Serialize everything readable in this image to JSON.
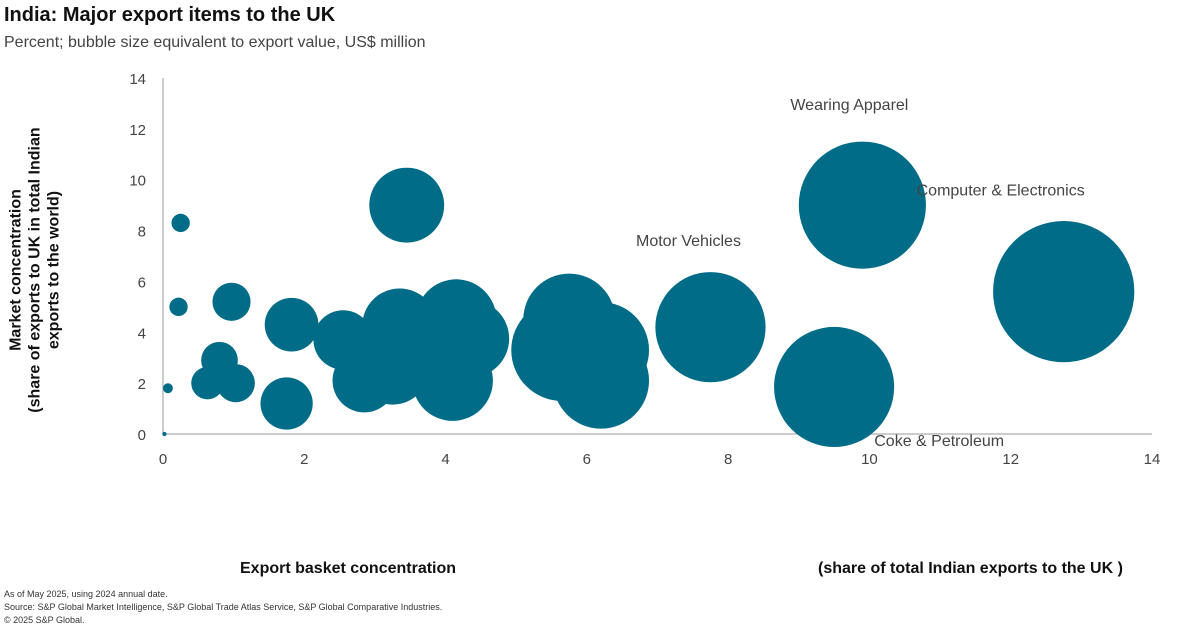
{
  "title": "India: Major export items to the UK",
  "subtitle": "Percent; bubble size equivalent to export value, US$ million",
  "footer": {
    "note": "As of May 2025, using 2024 annual date.",
    "source": "Source: S&P Global Market Intelligence, S&P Global Trade Atlas Service, S&P Global Comparative Industries.",
    "copyright": "© 2025 S&P Global."
  },
  "chart_data": {
    "type": "scatter",
    "title": "India: Major export items to the UK",
    "subtitle": "Percent; bubble size equivalent to export value, US$ million",
    "xlabel": "Export basket concentration",
    "xlabel_note": "(share of total Indian exports to the UK )",
    "ylabel": [
      "Market concentration",
      "(share of exports to UK in total Indian",
      "exports to the world)"
    ],
    "xlim": [
      0,
      14
    ],
    "ylim": [
      0,
      14
    ],
    "xticks": [
      0,
      2,
      4,
      6,
      8,
      10,
      12,
      14
    ],
    "yticks": [
      0,
      2,
      4,
      6,
      8,
      10,
      12,
      14
    ],
    "grid": false,
    "color": "#006c87",
    "points": [
      {
        "x": 0.02,
        "y": 0.0,
        "r": 0.03
      },
      {
        "x": 0.07,
        "y": 1.8,
        "r": 0.07
      },
      {
        "x": 0.25,
        "y": 8.3,
        "r": 0.13
      },
      {
        "x": 0.22,
        "y": 5.0,
        "r": 0.13
      },
      {
        "x": 0.97,
        "y": 5.2,
        "r": 0.27
      },
      {
        "x": 0.8,
        "y": 2.9,
        "r": 0.26
      },
      {
        "x": 0.63,
        "y": 2.0,
        "r": 0.23
      },
      {
        "x": 1.03,
        "y": 2.0,
        "r": 0.27
      },
      {
        "x": 1.82,
        "y": 4.3,
        "r": 0.38
      },
      {
        "x": 1.75,
        "y": 1.2,
        "r": 0.37
      },
      {
        "x": 2.55,
        "y": 3.7,
        "r": 0.42
      },
      {
        "x": 2.85,
        "y": 2.1,
        "r": 0.45
      },
      {
        "x": 3.25,
        "y": 2.6,
        "r": 0.52
      },
      {
        "x": 3.35,
        "y": 4.25,
        "r": 0.53
      },
      {
        "x": 3.45,
        "y": 9.0,
        "r": 0.53
      },
      {
        "x": 4.1,
        "y": 2.1,
        "r": 0.57
      },
      {
        "x": 4.15,
        "y": 4.5,
        "r": 0.57
      },
      {
        "x": 4.35,
        "y": 3.75,
        "r": 0.55
      },
      {
        "x": 5.75,
        "y": 4.5,
        "r": 0.65
      },
      {
        "x": 5.65,
        "y": 3.3,
        "r": 0.72
      },
      {
        "x": 6.2,
        "y": 3.3,
        "r": 0.68
      },
      {
        "x": 6.2,
        "y": 2.1,
        "r": 0.68
      },
      {
        "x": 7.75,
        "y": 4.2,
        "r": 0.78,
        "label": "Motor Vehicles"
      },
      {
        "x": 9.5,
        "y": 1.85,
        "r": 0.85,
        "label": "Coke & Petroleum"
      },
      {
        "x": 9.9,
        "y": 9.0,
        "r": 0.9,
        "label": "Wearing Apparel"
      },
      {
        "x": 12.75,
        "y": 5.6,
        "r": 1.0,
        "label": "Computer & Electronics"
      }
    ]
  }
}
